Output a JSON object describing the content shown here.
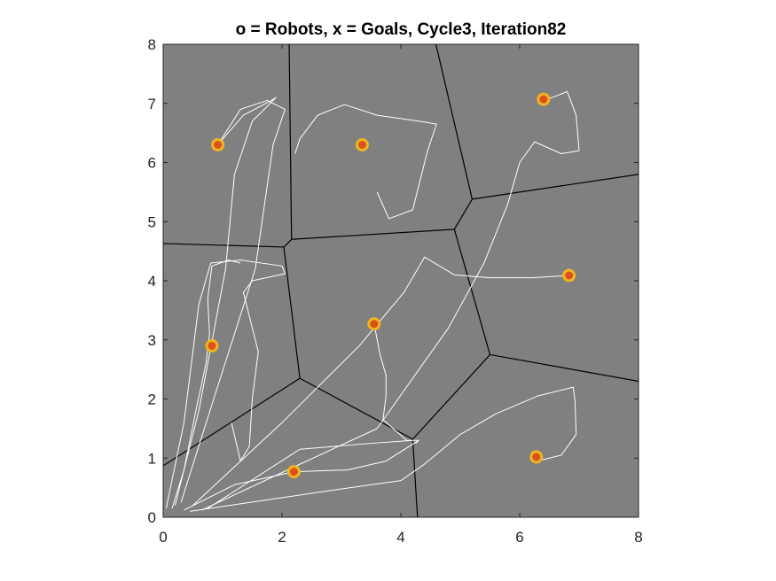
{
  "chart_data": {
    "type": "scatter",
    "title": "o = Robots, x = Goals, Cycle3, Iteration82",
    "xlabel": "",
    "ylabel": "",
    "xlim": [
      0,
      8
    ],
    "ylim": [
      0,
      8
    ],
    "xticks": [
      "0",
      "2",
      "4",
      "6",
      "8"
    ],
    "yticks": [
      "0",
      "1",
      "2",
      "3",
      "4",
      "5",
      "6",
      "7",
      "8"
    ],
    "grid": false,
    "legend": "none",
    "colors": {
      "background": "#808080",
      "voronoi_edges": "#000000",
      "trajectories": "#ffffff",
      "robot_ring": "#f0b323",
      "robot_core": "#d95319",
      "goal_marker": "#d95319"
    },
    "robots": [
      {
        "x": 0.92,
        "y": 6.3
      },
      {
        "x": 3.35,
        "y": 6.3
      },
      {
        "x": 6.4,
        "y": 7.07
      },
      {
        "x": 0.82,
        "y": 2.9
      },
      {
        "x": 3.55,
        "y": 3.27
      },
      {
        "x": 6.83,
        "y": 4.09
      },
      {
        "x": 2.2,
        "y": 0.77
      },
      {
        "x": 6.28,
        "y": 1.02
      }
    ],
    "goals": [
      {
        "x": 0.92,
        "y": 6.3
      },
      {
        "x": 3.35,
        "y": 6.3
      },
      {
        "x": 6.4,
        "y": 7.07
      },
      {
        "x": 0.82,
        "y": 2.9
      },
      {
        "x": 3.55,
        "y": 3.27
      },
      {
        "x": 6.83,
        "y": 4.09
      },
      {
        "x": 2.2,
        "y": 0.77
      },
      {
        "x": 6.28,
        "y": 1.02
      }
    ],
    "voronoi_edges": [
      [
        [
          2.12,
          8.0
        ],
        [
          2.16,
          4.7
        ]
      ],
      [
        [
          0.0,
          4.63
        ],
        [
          2.03,
          4.57
        ]
      ],
      [
        [
          2.03,
          4.57
        ],
        [
          2.16,
          4.7
        ]
      ],
      [
        [
          2.16,
          4.7
        ],
        [
          4.9,
          4.87
        ]
      ],
      [
        [
          4.59,
          8.0
        ],
        [
          5.2,
          5.38
        ]
      ],
      [
        [
          5.2,
          5.38
        ],
        [
          8.0,
          5.8
        ]
      ],
      [
        [
          4.9,
          4.87
        ],
        [
          5.2,
          5.38
        ]
      ],
      [
        [
          2.03,
          4.57
        ],
        [
          2.3,
          2.35
        ]
      ],
      [
        [
          0.0,
          0.87
        ],
        [
          2.3,
          2.35
        ]
      ],
      [
        [
          2.3,
          2.35
        ],
        [
          4.2,
          1.32
        ]
      ],
      [
        [
          4.2,
          1.32
        ],
        [
          4.28,
          0.0
        ]
      ],
      [
        [
          4.2,
          1.32
        ],
        [
          5.5,
          2.75
        ]
      ],
      [
        [
          4.9,
          4.87
        ],
        [
          5.5,
          2.75
        ]
      ],
      [
        [
          5.5,
          2.75
        ],
        [
          8.0,
          2.3
        ]
      ]
    ],
    "trajectories": [
      [
        [
          0.2,
          0.2
        ],
        [
          0.6,
          1.8
        ],
        [
          1.05,
          4.2
        ],
        [
          1.2,
          5.8
        ],
        [
          1.5,
          6.7
        ],
        [
          1.9,
          7.1
        ],
        [
          1.82,
          7.05
        ],
        [
          1.35,
          6.8
        ],
        [
          0.92,
          6.3
        ]
      ],
      [
        [
          0.3,
          0.25
        ],
        [
          0.85,
          2.0
        ],
        [
          1.55,
          4.2
        ],
        [
          1.85,
          6.3
        ],
        [
          2.05,
          6.9
        ],
        [
          1.75,
          7.05
        ],
        [
          1.3,
          6.9
        ],
        [
          0.92,
          6.3
        ]
      ],
      [
        [
          0.05,
          0.15
        ],
        [
          0.35,
          1.6
        ],
        [
          0.6,
          3.6
        ],
        [
          0.8,
          4.3
        ],
        [
          1.3,
          4.35
        ],
        [
          2.0,
          4.25
        ],
        [
          2.05,
          4.12
        ],
        [
          1.5,
          4.0
        ],
        [
          1.35,
          3.8
        ],
        [
          1.6,
          2.8
        ],
        [
          1.5,
          2.0
        ],
        [
          1.45,
          1.2
        ],
        [
          1.3,
          0.95
        ],
        [
          1.15,
          1.6
        ]
      ],
      [
        [
          0.15,
          0.15
        ],
        [
          0.35,
          0.8
        ],
        [
          0.55,
          1.8
        ],
        [
          0.72,
          2.6
        ],
        [
          0.78,
          3.1
        ],
        [
          0.75,
          3.7
        ],
        [
          0.82,
          4.25
        ],
        [
          1.1,
          4.35
        ],
        [
          1.3,
          4.3
        ]
      ],
      [
        [
          0.5,
          0.2
        ],
        [
          2.0,
          1.6
        ],
        [
          3.3,
          2.9
        ],
        [
          4.05,
          3.8
        ],
        [
          4.4,
          4.4
        ],
        [
          4.9,
          4.1
        ],
        [
          5.5,
          4.05
        ],
        [
          6.2,
          4.05
        ],
        [
          6.83,
          4.09
        ]
      ],
      [
        [
          0.75,
          0.15
        ],
        [
          2.3,
          1.15
        ],
        [
          3.5,
          1.25
        ],
        [
          4.2,
          1.3
        ],
        [
          4.3,
          1.3
        ],
        [
          4.1,
          1.3
        ],
        [
          3.7,
          1.65
        ],
        [
          3.75,
          2.05
        ],
        [
          3.75,
          2.4
        ],
        [
          3.65,
          2.75
        ],
        [
          3.55,
          3.27
        ]
      ],
      [
        [
          0.35,
          0.12
        ],
        [
          1.2,
          0.55
        ],
        [
          2.2,
          0.77
        ],
        [
          3.1,
          0.8
        ],
        [
          3.75,
          0.95
        ],
        [
          4.3,
          1.3
        ],
        [
          4.25,
          1.25
        ]
      ],
      [
        [
          0.45,
          0.1
        ],
        [
          2.8,
          0.45
        ],
        [
          4.0,
          0.62
        ],
        [
          4.4,
          0.9
        ],
        [
          5.0,
          1.4
        ],
        [
          5.6,
          1.75
        ],
        [
          6.3,
          2.05
        ],
        [
          6.9,
          2.2
        ],
        [
          6.93,
          1.98
        ],
        [
          6.95,
          1.4
        ],
        [
          6.7,
          1.05
        ],
        [
          6.3,
          0.95
        ]
      ],
      [
        [
          0.65,
          0.12
        ],
        [
          2.2,
          0.85
        ],
        [
          3.6,
          1.5
        ],
        [
          4.8,
          3.2
        ],
        [
          5.4,
          4.3
        ],
        [
          5.8,
          5.3
        ],
        [
          6.0,
          6.0
        ],
        [
          6.25,
          6.35
        ],
        [
          6.7,
          6.15
        ],
        [
          7.0,
          6.2
        ],
        [
          6.95,
          6.8
        ],
        [
          6.8,
          7.2
        ],
        [
          6.55,
          7.1
        ],
        [
          6.4,
          7.07
        ]
      ],
      [
        [
          3.6,
          5.5
        ],
        [
          3.8,
          5.05
        ],
        [
          4.2,
          5.2
        ],
        [
          4.45,
          6.2
        ],
        [
          4.6,
          6.65
        ],
        [
          4.3,
          6.7
        ],
        [
          3.6,
          6.8
        ],
        [
          3.05,
          6.98
        ],
        [
          2.6,
          6.8
        ],
        [
          2.3,
          6.4
        ],
        [
          2.22,
          6.15
        ]
      ]
    ]
  }
}
